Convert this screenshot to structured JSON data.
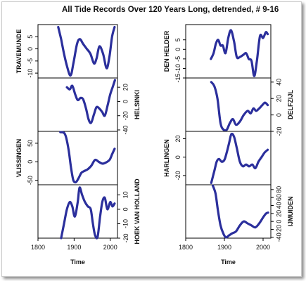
{
  "title": "All Tide Records Over 120 Years Long, detrended, # 9-16",
  "colors": {
    "line": "#2b2f9c",
    "frame": "#000000"
  },
  "chart_data": [
    {
      "type": "line",
      "name": "TRAVEMUNDE",
      "ylim": [
        -12,
        10
      ],
      "yticks": [
        -10,
        -5,
        0,
        5
      ],
      "ytick_labels": [
        "-10",
        "-5",
        "0",
        "5"
      ],
      "axis_side": "left",
      "x": [
        1856,
        1864,
        1872,
        1880,
        1890,
        1898,
        1908,
        1916,
        1925,
        1935,
        1945,
        1955,
        1962,
        1970,
        1980,
        1990,
        1998,
        2005,
        2012
      ],
      "y": [
        9,
        4,
        -2,
        -7,
        -11,
        -6,
        2,
        4,
        2,
        0,
        -2,
        -6,
        -4,
        1,
        -2,
        -8,
        -3,
        5,
        9
      ]
    },
    {
      "type": "line",
      "name": "HELSINKI",
      "ylim": [
        -42,
        33
      ],
      "yticks": [
        -40,
        -20,
        0,
        20
      ],
      "ytick_labels": [
        "-40",
        "-20",
        "0",
        "20"
      ],
      "axis_side": "right",
      "x": [
        1880,
        1888,
        1895,
        1903,
        1910,
        1918,
        1925,
        1933,
        1940,
        1947,
        1955,
        1962,
        1970,
        1978,
        1985,
        1993,
        2000,
        2008,
        2013
      ],
      "y": [
        20,
        17,
        22,
        10,
        2,
        5,
        3,
        -10,
        -25,
        -30,
        -18,
        -8,
        -10,
        -15,
        -20,
        -5,
        10,
        22,
        30
      ]
    },
    {
      "type": "line",
      "name": "VLISSINGEN",
      "ylim": [
        -62,
        82
      ],
      "yticks": [
        -50,
        0,
        50
      ],
      "ytick_labels": [
        "-50",
        "0",
        "50"
      ],
      "axis_side": "left",
      "x": [
        1862,
        1872,
        1878,
        1885,
        1892,
        1898,
        1905,
        1912,
        1920,
        1928,
        1938,
        1948,
        1958,
        1968,
        1978,
        1988,
        1998,
        2005,
        2012
      ],
      "y": [
        80,
        78,
        65,
        30,
        -20,
        -50,
        -55,
        -45,
        -30,
        -25,
        -20,
        -10,
        5,
        0,
        -5,
        -2,
        5,
        20,
        35
      ]
    },
    {
      "type": "line",
      "name": "HOEK VAN HOLLAND",
      "ylim": [
        -20,
        17
      ],
      "yticks": [
        -20,
        -10,
        0,
        10
      ],
      "ytick_labels": [
        "-20",
        "-10",
        "0",
        "10"
      ],
      "axis_side": "right",
      "x": [
        1864,
        1872,
        1880,
        1888,
        1895,
        1902,
        1910,
        1915,
        1922,
        1930,
        1938,
        1946,
        1952,
        1958,
        1965,
        1972,
        1978,
        1985,
        1992,
        2000,
        2006,
        2012
      ],
      "y": [
        -20,
        -10,
        0,
        5,
        2,
        -5,
        5,
        15,
        10,
        5,
        2,
        0,
        -10,
        -18,
        -19,
        -5,
        5,
        8,
        0,
        5,
        2,
        4
      ]
    },
    {
      "type": "line",
      "name": "DEN HELDER",
      "ylim": [
        -15,
        13
      ],
      "yticks": [
        -15,
        -10,
        -5,
        0,
        5
      ],
      "ytick_labels": [
        "-15",
        "-10",
        "-5",
        "0",
        "5"
      ],
      "axis_side": "left",
      "x": [
        1865,
        1872,
        1878,
        1884,
        1890,
        1896,
        1903,
        1910,
        1917,
        1925,
        1932,
        1940,
        1948,
        1956,
        1963,
        1970,
        1977,
        1984,
        1992,
        2000,
        2007,
        2012
      ],
      "y": [
        -5,
        -2,
        3,
        5,
        2,
        2,
        -2,
        6,
        10,
        4,
        -4,
        -4,
        -3,
        -2,
        -5,
        -6,
        -14,
        -6,
        7,
        6,
        9,
        8
      ]
    },
    {
      "type": "line",
      "name": "DELFZIJL",
      "ylim": [
        -20,
        45
      ],
      "yticks": [
        -20,
        0,
        20,
        40
      ],
      "ytick_labels": [
        "-20",
        "0",
        "20",
        "40"
      ],
      "axis_side": "right",
      "x": [
        1866,
        1874,
        1882,
        1890,
        1898,
        1906,
        1914,
        1922,
        1930,
        1940,
        1950,
        1960,
        1968,
        1975,
        1982,
        1990,
        1998,
        2005,
        2012
      ],
      "y": [
        40,
        35,
        20,
        -10,
        -18,
        -18,
        -10,
        -5,
        -12,
        -8,
        0,
        5,
        2,
        8,
        5,
        8,
        12,
        15,
        12
      ]
    },
    {
      "type": "line",
      "name": "HARLINGEN",
      "ylim": [
        -30,
        28
      ],
      "yticks": [
        -20,
        0,
        20
      ],
      "ytick_labels": [
        "-20",
        "0",
        "20"
      ],
      "axis_side": "left",
      "x": [
        1866,
        1874,
        1880,
        1886,
        1893,
        1900,
        1906,
        1912,
        1918,
        1925,
        1932,
        1940,
        1948,
        1956,
        1964,
        1972,
        1980,
        1988,
        1996,
        2004,
        2012
      ],
      "y": [
        -28,
        -15,
        -5,
        -2,
        -5,
        -3,
        5,
        15,
        25,
        22,
        10,
        -5,
        -10,
        -8,
        -10,
        -8,
        -12,
        -5,
        0,
        5,
        8
      ]
    },
    {
      "type": "line",
      "name": "IJMUIDEN",
      "ylim": [
        -42,
        92
      ],
      "yticks": [
        -40,
        -20,
        0,
        20,
        40,
        60,
        80
      ],
      "ytick_labels": [
        "-40",
        "-20",
        "0",
        "20",
        "40",
        "60",
        "80"
      ],
      "axis_side": "right",
      "x": [
        1870,
        1877,
        1883,
        1890,
        1897,
        1904,
        1912,
        1920,
        1930,
        1940,
        1950,
        1960,
        1970,
        1980,
        1990,
        2000,
        2008,
        2013
      ],
      "y": [
        90,
        70,
        30,
        -10,
        -30,
        -40,
        -35,
        -30,
        -25,
        -10,
        0,
        -5,
        -10,
        -15,
        -5,
        10,
        20,
        22
      ]
    }
  ],
  "xaxis": {
    "label": "Time",
    "xlim": [
      1800,
      2020
    ],
    "ticks": [
      1800,
      1900,
      2000
    ],
    "tick_labels": [
      "1800",
      "1900",
      "2000"
    ]
  }
}
